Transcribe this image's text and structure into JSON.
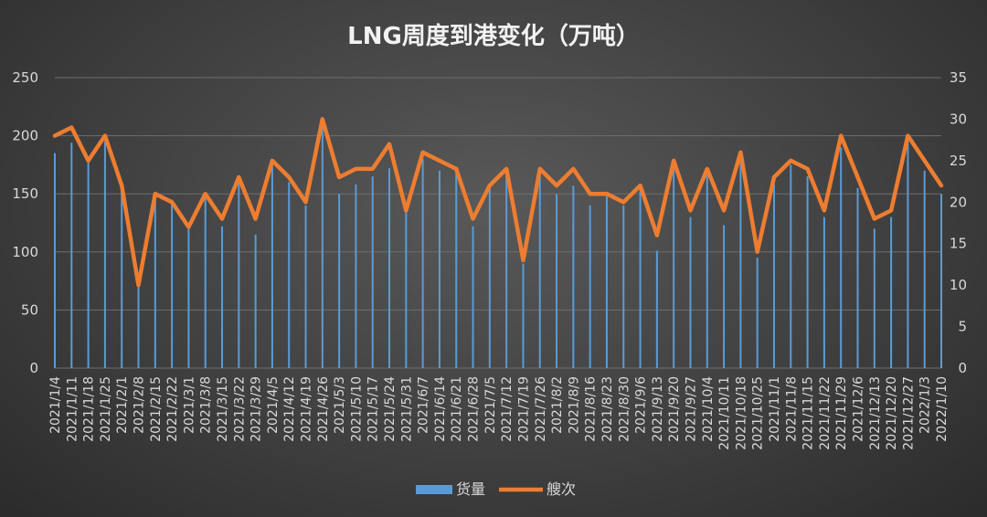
{
  "chart_data": {
    "type": "bar+line",
    "title": "LNG周度到港变化（万吨）",
    "categories": [
      "2021/1/4",
      "2021/1/11",
      "2021/1/18",
      "2021/1/25",
      "2021/2/1",
      "2021/2/8",
      "2021/2/15",
      "2021/2/22",
      "2021/3/1",
      "2021/3/8",
      "2021/3/15",
      "2021/3/22",
      "2021/3/29",
      "2021/4/5",
      "2021/4/12",
      "2021/4/19",
      "2021/4/26",
      "2021/5/3",
      "2021/5/10",
      "2021/5/17",
      "2021/5/24",
      "2021/5/31",
      "2021/6/7",
      "2021/6/14",
      "2021/6/21",
      "2021/6/28",
      "2021/7/5",
      "2021/7/12",
      "2021/7/19",
      "2021/7/26",
      "2021/8/2",
      "2021/8/9",
      "2021/8/16",
      "2021/8/23",
      "2021/8/30",
      "2021/9/6",
      "2021/9/13",
      "2021/9/20",
      "2021/9/27",
      "2021/10/4",
      "2021/10/11",
      "2021/10/18",
      "2021/10/25",
      "2021/11/1",
      "2021/11/8",
      "2021/11/15",
      "2021/11/22",
      "2021/11/29",
      "2021/12/6",
      "2021/12/13",
      "2021/12/20",
      "2021/12/27",
      "2022/1/3",
      "2022/1/10"
    ],
    "series": [
      {
        "name": "货量",
        "axis": "left",
        "render": "bar",
        "color": "#5b9bd5",
        "values": [
          185,
          194,
          180,
          195,
          160,
          70,
          150,
          145,
          120,
          150,
          122,
          165,
          115,
          180,
          160,
          140,
          210,
          150,
          158,
          165,
          172,
          135,
          180,
          170,
          168,
          122,
          155,
          168,
          90,
          168,
          150,
          157,
          140,
          148,
          140,
          155,
          101,
          175,
          130,
          168,
          123,
          185,
          95,
          158,
          175,
          165,
          130,
          190,
          155,
          120,
          130,
          195,
          170,
          150
        ]
      },
      {
        "name": "艘次",
        "axis": "right",
        "render": "line",
        "color": "#ed7d31",
        "values": [
          28,
          29,
          25,
          28,
          22,
          10,
          21,
          20,
          17,
          21,
          18,
          23,
          18,
          25,
          23,
          20,
          30,
          23,
          24,
          24,
          27,
          19,
          26,
          25,
          24,
          18,
          22,
          24,
          13,
          24,
          22,
          24,
          21,
          21,
          20,
          22,
          16,
          25,
          19,
          24,
          19,
          26,
          14,
          23,
          25,
          24,
          19,
          28,
          23,
          18,
          19,
          28,
          25,
          22
        ]
      }
    ],
    "y_left": {
      "min": 0,
      "max": 250,
      "ticks": [
        0,
        50,
        100,
        150,
        200,
        250
      ]
    },
    "y_right": {
      "min": 0,
      "max": 35,
      "ticks": [
        0,
        5,
        10,
        15,
        20,
        25,
        30,
        35
      ]
    },
    "grid": true,
    "legend_position": "bottom"
  }
}
